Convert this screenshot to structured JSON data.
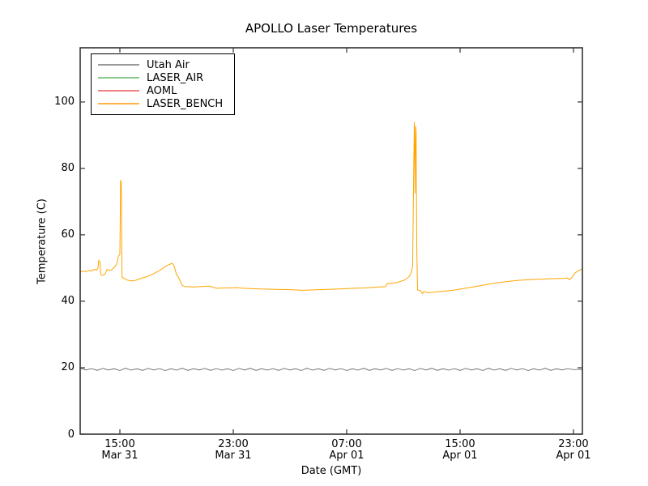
{
  "chart_data": {
    "type": "line",
    "title": "APOLLO Laser Temperatures",
    "xlabel": "Date (GMT)",
    "ylabel": "Temperature (C)",
    "x_unit": "hours_since_Mar31_0000_GMT",
    "xlim": [
      12.2,
      47.63
    ],
    "ylim": [
      0,
      116.3
    ],
    "grid": false,
    "legend_position": "upper left",
    "frame_color": "#333333",
    "yticks": [
      0,
      20,
      40,
      60,
      80,
      100
    ],
    "xticks": [
      {
        "hour": 15,
        "time": "15:00",
        "date": "Mar 31"
      },
      {
        "hour": 23,
        "time": "23:00",
        "date": "Mar 31"
      },
      {
        "hour": 31,
        "time": "07:00",
        "date": "Apr 01"
      },
      {
        "hour": 39,
        "time": "15:00",
        "date": "Apr 01"
      },
      {
        "hour": 47,
        "time": "23:00",
        "date": "Apr 01"
      }
    ],
    "series": [
      {
        "name": "Utah Air",
        "color": "#5a5a5a",
        "legend_color": "#9a9a9a",
        "line_width": 0.8,
        "points_spec": {
          "start": 12.2,
          "step": 0.4,
          "values": [
            19.9,
            19.3,
            19.75,
            19.2,
            19.8,
            19.3,
            19.7,
            19.15,
            19.85,
            19.25,
            19.7,
            19.2,
            19.8,
            19.3,
            19.75,
            19.15,
            19.7,
            19.25,
            19.85,
            19.2,
            19.7,
            19.3,
            19.8,
            19.2,
            19.75,
            19.25,
            19.7,
            19.15,
            19.8,
            19.3,
            19.85,
            19.2,
            19.7,
            19.25,
            19.75,
            19.2,
            19.8,
            19.3,
            19.7,
            19.15,
            19.85,
            19.25,
            19.7,
            19.2,
            19.8,
            19.3,
            19.75,
            19.15,
            19.7,
            19.25,
            19.85,
            19.2,
            19.7,
            19.3,
            19.8,
            19.2,
            19.75,
            19.25,
            19.7,
            19.15,
            19.8,
            19.3,
            19.85,
            19.2,
            19.7,
            19.25,
            19.75,
            19.2,
            19.8,
            19.3,
            19.7,
            19.15,
            19.85,
            19.25,
            19.7,
            19.2,
            19.8,
            19.3,
            19.75,
            19.15,
            19.7,
            19.25,
            19.85,
            19.2,
            19.7,
            19.3,
            19.75,
            19.4,
            19.5,
            19.45
          ]
        }
      },
      {
        "name": "LASER_AIR",
        "color": "#7fbf7f",
        "legend_color": "#8cc98c",
        "line_width": 1,
        "points": []
      },
      {
        "name": "AOML",
        "color": "#ee6f6f",
        "legend_color": "#f08080",
        "line_width": 1,
        "points": []
      },
      {
        "name": "LASER_BENCH",
        "color": "#ffa500",
        "legend_color": "#ffb347",
        "line_width": 1,
        "points": [
          [
            12.2,
            48.8
          ],
          [
            12.4,
            49.1
          ],
          [
            12.6,
            48.9
          ],
          [
            12.8,
            49.3
          ],
          [
            13.0,
            49.1
          ],
          [
            13.2,
            49.6
          ],
          [
            13.35,
            49.4
          ],
          [
            13.45,
            49.9
          ],
          [
            13.51,
            52.3
          ],
          [
            13.6,
            51.8
          ],
          [
            13.65,
            48.0
          ],
          [
            13.8,
            47.8
          ],
          [
            13.95,
            48.2
          ],
          [
            14.1,
            49.6
          ],
          [
            14.25,
            49.3
          ],
          [
            14.4,
            49.4
          ],
          [
            14.55,
            50.0
          ],
          [
            14.7,
            50.6
          ],
          [
            14.8,
            51.6
          ],
          [
            14.9,
            53.6
          ],
          [
            15.0,
            54.2
          ],
          [
            15.05,
            76.5
          ],
          [
            15.1,
            75.8
          ],
          [
            15.15,
            47.2
          ],
          [
            15.3,
            46.9
          ],
          [
            15.5,
            46.4
          ],
          [
            15.8,
            46.1
          ],
          [
            16.1,
            46.3
          ],
          [
            16.5,
            46.9
          ],
          [
            16.9,
            47.4
          ],
          [
            17.3,
            48.1
          ],
          [
            17.7,
            49.0
          ],
          [
            18.0,
            49.8
          ],
          [
            18.3,
            50.7
          ],
          [
            18.55,
            51.2
          ],
          [
            18.7,
            51.4
          ],
          [
            18.8,
            50.9
          ],
          [
            18.9,
            49.6
          ],
          [
            19.0,
            47.9
          ],
          [
            19.1,
            47.5
          ],
          [
            19.25,
            46.1
          ],
          [
            19.4,
            44.8
          ],
          [
            19.6,
            44.4
          ],
          [
            20.3,
            44.3
          ],
          [
            21.3,
            44.6
          ],
          [
            21.8,
            43.9
          ],
          [
            22.5,
            44.0
          ],
          [
            23.3,
            44.1
          ],
          [
            23.7,
            43.9
          ],
          [
            24.9,
            43.7
          ],
          [
            26.0,
            43.6
          ],
          [
            27.0,
            43.5
          ],
          [
            27.9,
            43.3
          ],
          [
            29.0,
            43.5
          ],
          [
            30.5,
            43.7
          ],
          [
            31.5,
            43.9
          ],
          [
            32.3,
            44.0
          ],
          [
            33.3,
            44.3
          ],
          [
            33.75,
            44.4
          ],
          [
            33.85,
            45.3
          ],
          [
            34.5,
            45.6
          ],
          [
            35.1,
            46.4
          ],
          [
            35.4,
            47.4
          ],
          [
            35.55,
            48.6
          ],
          [
            35.65,
            50.5
          ],
          [
            35.72,
            76.0
          ],
          [
            35.77,
            94.0
          ],
          [
            35.8,
            84.0
          ],
          [
            35.83,
            72.5
          ],
          [
            35.86,
            92.8
          ],
          [
            35.9,
            91.0
          ],
          [
            35.95,
            55.0
          ],
          [
            36.0,
            43.4
          ],
          [
            36.2,
            43.2
          ],
          [
            36.35,
            42.3
          ],
          [
            36.45,
            43.0
          ],
          [
            36.6,
            42.7
          ],
          [
            36.85,
            42.6
          ],
          [
            37.5,
            42.9
          ],
          [
            38.5,
            43.3
          ],
          [
            39.5,
            44.0
          ],
          [
            40.3,
            44.6
          ],
          [
            41.2,
            45.3
          ],
          [
            42.0,
            45.8
          ],
          [
            43.1,
            46.3
          ],
          [
            44.3,
            46.6
          ],
          [
            45.4,
            46.8
          ],
          [
            46.3,
            46.9
          ],
          [
            46.55,
            47.0
          ],
          [
            46.72,
            46.5
          ],
          [
            46.9,
            47.2
          ],
          [
            47.1,
            48.5
          ],
          [
            47.4,
            49.3
          ],
          [
            47.63,
            49.8
          ]
        ]
      }
    ]
  }
}
